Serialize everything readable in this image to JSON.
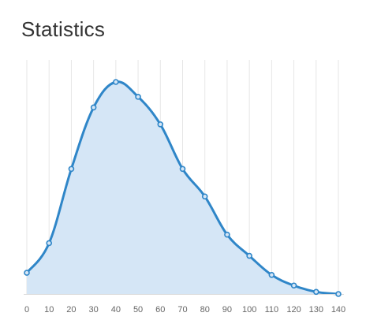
{
  "panel": {
    "title": "Statistics"
  },
  "chart_data": {
    "type": "area",
    "title": "Statistics",
    "xlabel": "",
    "ylabel": "",
    "xlim": [
      0,
      140
    ],
    "ylim": [
      0,
      100
    ],
    "grid": {
      "vertical": true,
      "horizontal": false
    },
    "x_ticks": [
      0,
      10,
      20,
      30,
      40,
      50,
      60,
      70,
      80,
      90,
      100,
      110,
      120,
      130,
      140
    ],
    "series": [
      {
        "x": [
          0,
          10,
          20,
          30,
          40,
          50,
          60,
          70,
          80,
          90,
          100,
          110,
          120,
          130,
          140
        ],
        "y": [
          10,
          24,
          59,
          88,
          100,
          93,
          80,
          59,
          46,
          28,
          18,
          9,
          4,
          1,
          0
        ],
        "line_color": "#2f86c8",
        "fill_color": "#d5e6f6"
      }
    ]
  }
}
